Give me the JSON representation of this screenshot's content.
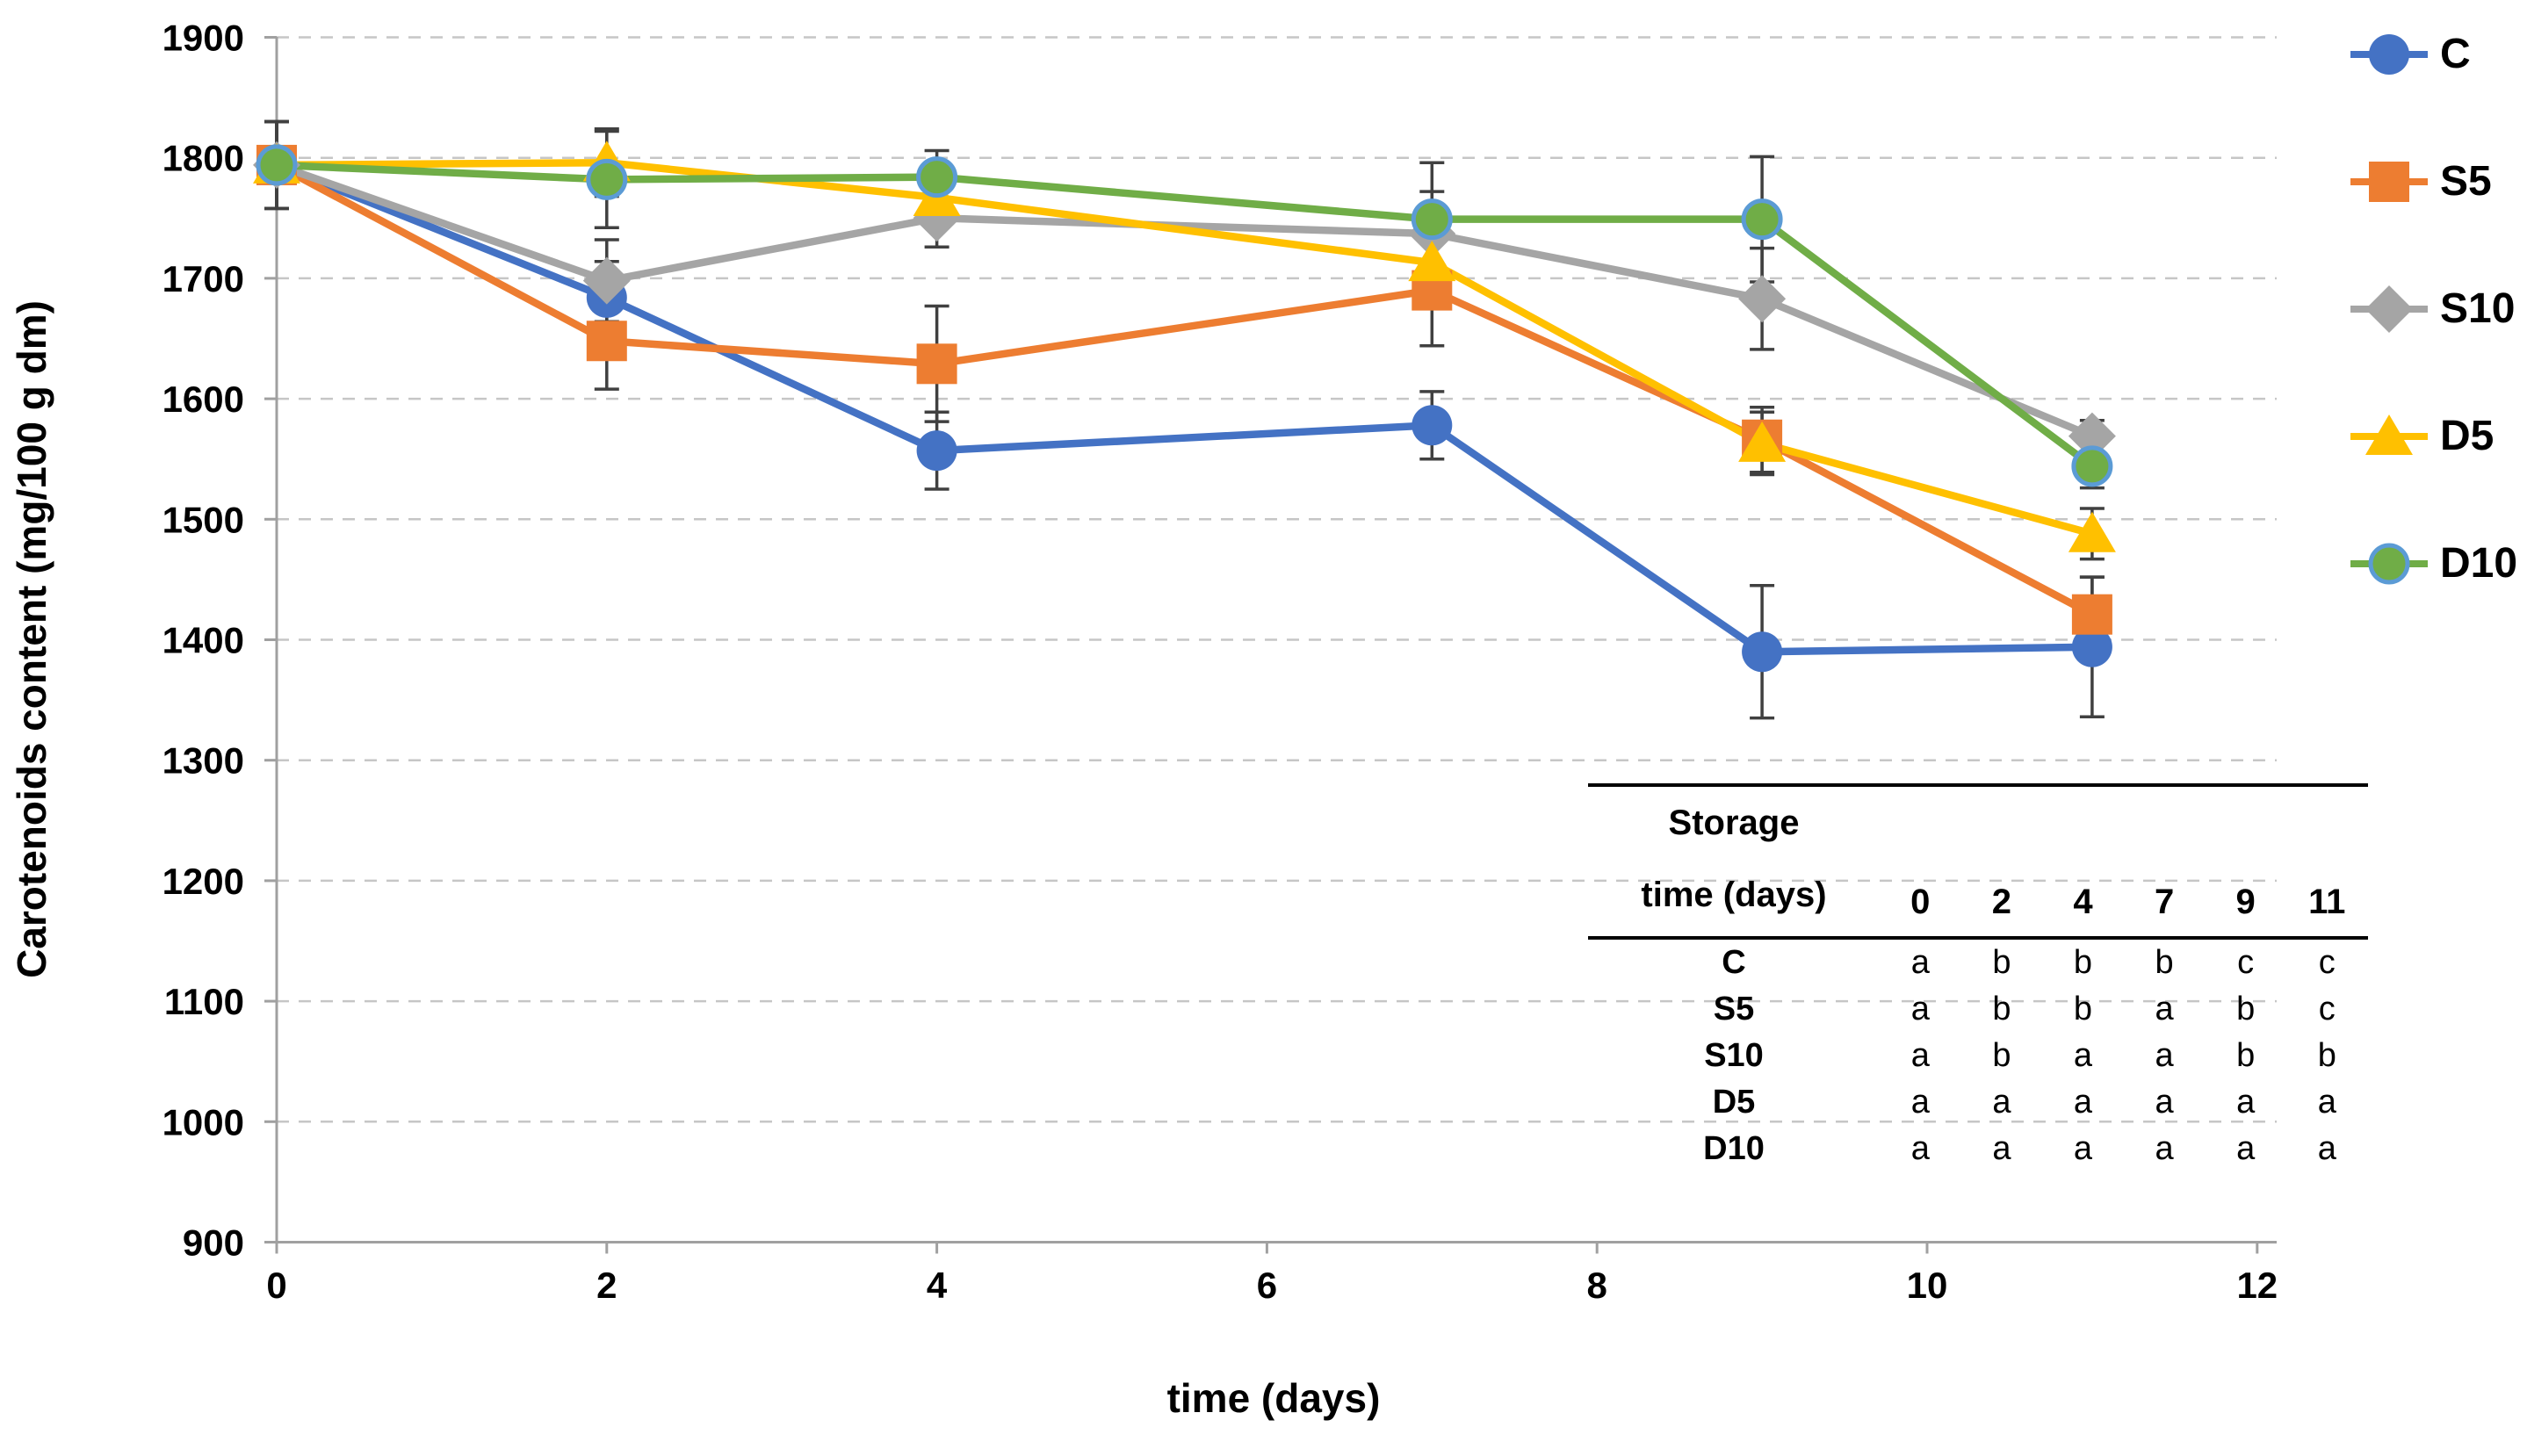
{
  "chart_data": {
    "type": "line",
    "title": "",
    "xlabel": "time (days)",
    "ylabel": "Carotenoids content (mg/100 g dm)",
    "x": [
      0,
      2,
      4,
      7,
      9,
      11
    ],
    "xlim": [
      0,
      12
    ],
    "ylim": [
      900,
      1900
    ],
    "x_ticks": [
      0,
      2,
      4,
      6,
      8,
      10,
      12
    ],
    "y_ticks": [
      900,
      1000,
      1100,
      1200,
      1300,
      1400,
      1500,
      1600,
      1700,
      1800,
      1900
    ],
    "grid": "horizontal-dashed",
    "legend_position": "right",
    "error_bar_color": "#404040",
    "axis_color": "#a0a0a0",
    "gridline_color": "#c6c6c6",
    "series": [
      {
        "name": "C",
        "color": "#4472C4",
        "marker": "circle",
        "values": [
          1794,
          1684,
          1557,
          1578,
          1390,
          1394
        ],
        "errors": [
          36,
          30,
          32,
          28,
          55,
          58
        ]
      },
      {
        "name": "S5",
        "color": "#ED7D31",
        "marker": "square",
        "values": [
          1794,
          1648,
          1629,
          1690,
          1566,
          1421
        ],
        "errors": [
          36,
          40,
          48,
          46,
          27,
          31
        ]
      },
      {
        "name": "S10",
        "color": "#A5A5A5",
        "marker": "diamond",
        "values": [
          1794,
          1698,
          1750,
          1737,
          1683,
          1569
        ],
        "errors": [
          36,
          34,
          24,
          35,
          42,
          13
        ]
      },
      {
        "name": "D5",
        "color": "#FFC000",
        "marker": "triangle",
        "values": [
          1794,
          1796,
          1767,
          1713,
          1563,
          1488
        ],
        "errors": [
          36,
          28,
          20,
          30,
          26,
          21
        ]
      },
      {
        "name": "D10",
        "color": "#70AD47",
        "marker": "circle-outlined",
        "marker_outline": "#5B9BD5",
        "values": [
          1794,
          1782,
          1784,
          1749,
          1749,
          1544
        ],
        "errors": [
          36,
          40,
          22,
          47,
          52,
          18
        ]
      }
    ]
  },
  "axes": {
    "y_title": "Carotenoids content (mg/100 g dm)",
    "x_title": "time (days)"
  },
  "significance_table": {
    "header_line1": "Storage",
    "header_line2": "time (days)",
    "columns": [
      "0",
      "2",
      "4",
      "7",
      "9",
      "11"
    ],
    "rows": [
      {
        "label": "C",
        "letters": [
          "a",
          "b",
          "b",
          "b",
          "c",
          "c"
        ]
      },
      {
        "label": "S5",
        "letters": [
          "a",
          "b",
          "b",
          "a",
          "b",
          "c"
        ]
      },
      {
        "label": "S10",
        "letters": [
          "a",
          "b",
          "a",
          "a",
          "b",
          "b"
        ]
      },
      {
        "label": "D5",
        "letters": [
          "a",
          "a",
          "a",
          "a",
          "a",
          "a"
        ]
      },
      {
        "label": "D10",
        "letters": [
          "a",
          "a",
          "a",
          "a",
          "a",
          "a"
        ]
      }
    ]
  }
}
